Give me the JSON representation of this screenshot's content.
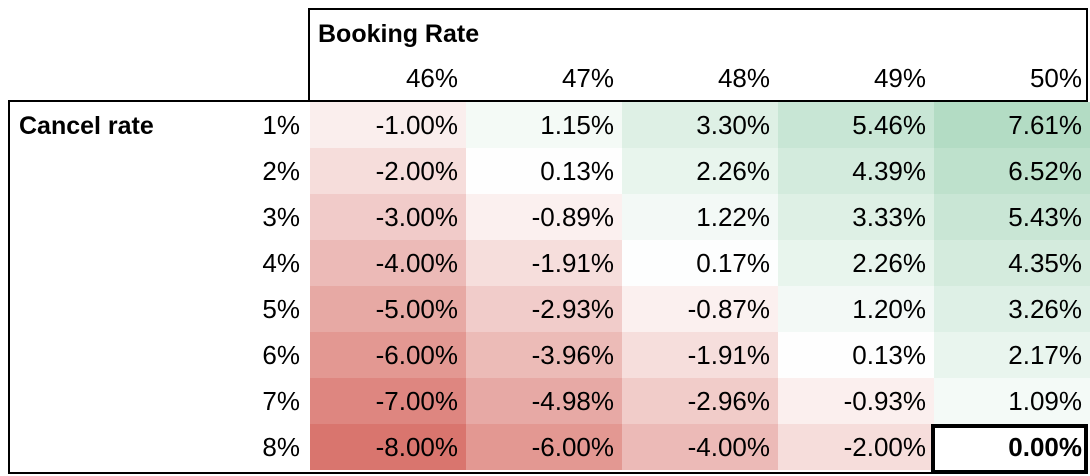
{
  "table": {
    "column_group_title": "Booking Rate",
    "row_group_title": "Cancel rate",
    "columns": [
      "46%",
      "47%",
      "48%",
      "49%",
      "50%"
    ],
    "rows": [
      {
        "label": "1%",
        "cells": [
          "-1.00%",
          "1.15%",
          "3.30%",
          "5.46%",
          "7.61%"
        ]
      },
      {
        "label": "2%",
        "cells": [
          "-2.00%",
          "0.13%",
          "2.26%",
          "4.39%",
          "6.52%"
        ]
      },
      {
        "label": "3%",
        "cells": [
          "-3.00%",
          "-0.89%",
          "1.22%",
          "3.33%",
          "5.43%"
        ]
      },
      {
        "label": "4%",
        "cells": [
          "-4.00%",
          "-1.91%",
          "0.17%",
          "2.26%",
          "4.35%"
        ]
      },
      {
        "label": "5%",
        "cells": [
          "-5.00%",
          "-2.93%",
          "-0.87%",
          "1.20%",
          "3.26%"
        ]
      },
      {
        "label": "6%",
        "cells": [
          "-6.00%",
          "-3.96%",
          "-1.91%",
          "0.13%",
          "2.17%"
        ]
      },
      {
        "label": "7%",
        "cells": [
          "-7.00%",
          "-4.98%",
          "-2.96%",
          "-0.93%",
          "1.09%"
        ]
      },
      {
        "label": "8%",
        "cells": [
          "-8.00%",
          "-6.00%",
          "-4.00%",
          "-2.00%",
          "0.00%"
        ]
      }
    ],
    "highlighted_cell": {
      "row": 7,
      "col": 4
    },
    "colors": {
      "negative_max": "#d9756e",
      "neutral": "#ffffff",
      "positive_max": "#b3dcc4"
    }
  }
}
